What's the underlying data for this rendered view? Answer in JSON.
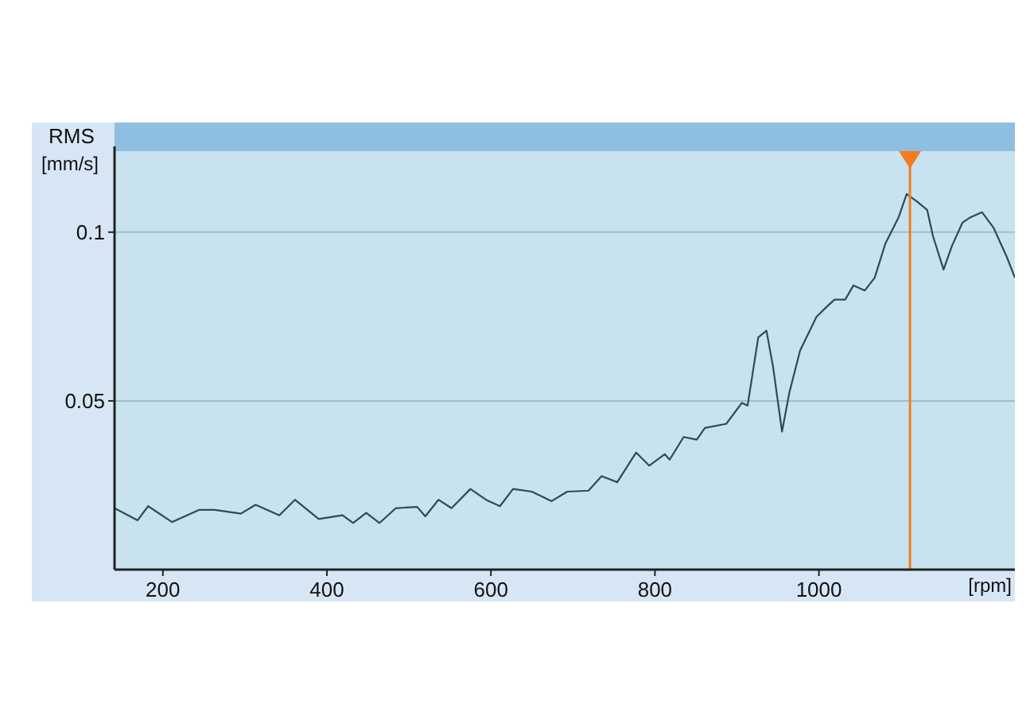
{
  "chart_data": {
    "type": "line",
    "ylabel": "RMS [mm/s]",
    "xlabel": "[rpm]",
    "xlim": [
      141,
      1239
    ],
    "xticks": [
      200,
      400,
      600,
      800,
      1000
    ],
    "ylim": [
      0,
      0.124
    ],
    "yticks": [
      0.05,
      0.1
    ],
    "grid": "y",
    "x": [
      141,
      169,
      182,
      211,
      244,
      263,
      295,
      313,
      342,
      361,
      390,
      419,
      432,
      448,
      464,
      484,
      510,
      520,
      536,
      552,
      575,
      594,
      611,
      627,
      650,
      674,
      693,
      719,
      735,
      754,
      777,
      793,
      812,
      818,
      835,
      851,
      861,
      887,
      906,
      913,
      926,
      936,
      944,
      955,
      964,
      977,
      997,
      1010,
      1019,
      1032,
      1042,
      1056,
      1068,
      1081,
      1097,
      1107,
      1120,
      1132,
      1139,
      1152,
      1162,
      1175,
      1184,
      1199,
      1213,
      1229,
      1239
    ],
    "series": [
      {
        "color": "#2c4a5e",
        "values": [
          0.0182,
          0.0146,
          0.0188,
          0.0141,
          0.0177,
          0.0177,
          0.0166,
          0.0192,
          0.0161,
          0.0207,
          0.015,
          0.0161,
          0.0138,
          0.0168,
          0.0138,
          0.0182,
          0.0186,
          0.0158,
          0.0207,
          0.0182,
          0.0239,
          0.0207,
          0.0188,
          0.0239,
          0.0231,
          0.0203,
          0.0231,
          0.0234,
          0.0277,
          0.0259,
          0.0347,
          0.0308,
          0.0342,
          0.0326,
          0.0393,
          0.0385,
          0.042,
          0.0432,
          0.0494,
          0.0486,
          0.0688,
          0.0708,
          0.0602,
          0.0409,
          0.0525,
          0.0649,
          0.0749,
          0.078,
          0.08,
          0.08,
          0.0842,
          0.0827,
          0.0865,
          0.0966,
          0.1043,
          0.1113,
          0.109,
          0.1066,
          0.0989,
          0.0889,
          0.0958,
          0.1028,
          0.1043,
          0.1059,
          0.1013,
          0.0927,
          0.0865
        ]
      }
    ],
    "ref_lines": [
      {
        "axis": "x",
        "value": 1111,
        "color": "#f47b20"
      }
    ]
  }
}
